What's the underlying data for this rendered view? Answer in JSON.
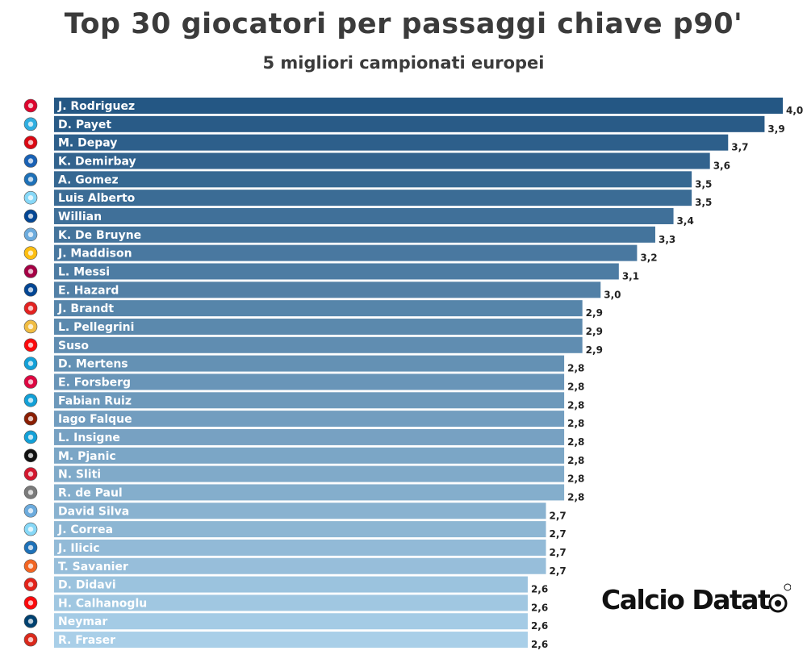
{
  "header": {
    "title": "Top 30 giocatori per passaggi chiave p90'",
    "subtitle": "5 migliori campionati europei"
  },
  "brand": {
    "text": "Calcio Datat"
  },
  "chart_data": {
    "type": "bar",
    "orientation": "horizontal",
    "title": "Top 30 giocatori per passaggi chiave p90'",
    "subtitle": "5 migliori campionati europei",
    "xlim": [
      0,
      4.0
    ],
    "grid": false,
    "categories": [
      "J. Rodriguez",
      "D. Payet",
      "M. Depay",
      "K. Demirbay",
      "A. Gomez",
      "Luis Alberto",
      "Willian",
      "K. De Bruyne",
      "J. Maddison",
      "L. Messi",
      "E. Hazard",
      "J. Brandt",
      "L. Pellegrini",
      "Suso",
      "D. Mertens",
      "E. Forsberg",
      "Fabian Ruiz",
      "Iago Falque",
      "L. Insigne",
      "M. Pjanic",
      "N. Sliti",
      "R. de Paul",
      "David Silva",
      "J. Correa",
      "J. Ilicic",
      "T. Savanier",
      "D. Didavi",
      "H. Calhanoglu",
      "Neymar",
      "R. Fraser"
    ],
    "values": [
      4.0,
      3.9,
      3.7,
      3.6,
      3.5,
      3.5,
      3.4,
      3.3,
      3.2,
      3.1,
      3.0,
      2.9,
      2.9,
      2.9,
      2.8,
      2.8,
      2.8,
      2.8,
      2.8,
      2.8,
      2.8,
      2.8,
      2.7,
      2.7,
      2.7,
      2.7,
      2.6,
      2.6,
      2.6,
      2.6
    ],
    "value_labels": [
      "4,0",
      "3,9",
      "3,7",
      "3,6",
      "3,5",
      "3,5",
      "3,4",
      "3,3",
      "3,2",
      "3,1",
      "3,0",
      "2,9",
      "2,9",
      "2,9",
      "2,8",
      "2,8",
      "2,8",
      "2,8",
      "2,8",
      "2,8",
      "2,8",
      "2,8",
      "2,7",
      "2,7",
      "2,7",
      "2,7",
      "2,6",
      "2,6",
      "2,6",
      "2,6"
    ],
    "colors": {
      "dark": "#245784",
      "light": "#a9cfe8"
    },
    "team_badges": [
      {
        "name": "bayern-badge-icon",
        "color": "#dc052d"
      },
      {
        "name": "marseille-badge-icon",
        "color": "#2faee0"
      },
      {
        "name": "lyon-badge-icon",
        "color": "#da0812"
      },
      {
        "name": "hoffenheim-badge-icon",
        "color": "#1961b5"
      },
      {
        "name": "atalanta-badge-icon",
        "color": "#1e71b8"
      },
      {
        "name": "lazio-badge-icon",
        "color": "#87d8f7"
      },
      {
        "name": "chelsea-badge-icon",
        "color": "#034694"
      },
      {
        "name": "man-city-badge-icon",
        "color": "#6cabdd"
      },
      {
        "name": "leicester-badge-icon",
        "color": "#fdbe11"
      },
      {
        "name": "barcelona-badge-icon",
        "color": "#a50044"
      },
      {
        "name": "chelsea-badge-icon",
        "color": "#034694"
      },
      {
        "name": "leverkusen-badge-icon",
        "color": "#e32221"
      },
      {
        "name": "roma-badge-icon",
        "color": "#f0bc42"
      },
      {
        "name": "milan-badge-icon",
        "color": "#fb090b"
      },
      {
        "name": "napoli-badge-icon",
        "color": "#12a0d7"
      },
      {
        "name": "leipzig-badge-icon",
        "color": "#dd0741"
      },
      {
        "name": "napoli-badge-icon",
        "color": "#12a0d7"
      },
      {
        "name": "torino-badge-icon",
        "color": "#8a1e03"
      },
      {
        "name": "napoli-badge-icon",
        "color": "#12a0d7"
      },
      {
        "name": "juventus-badge-icon",
        "color": "#111111"
      },
      {
        "name": "dijon-badge-icon",
        "color": "#d3172e"
      },
      {
        "name": "udinese-badge-icon",
        "color": "#7a7a7a"
      },
      {
        "name": "man-city-badge-icon",
        "color": "#6cabdd"
      },
      {
        "name": "lazio-badge-icon",
        "color": "#87d8f7"
      },
      {
        "name": "atalanta-badge-icon",
        "color": "#1e71b8"
      },
      {
        "name": "montpellier-badge-icon",
        "color": "#f26522"
      },
      {
        "name": "stuttgart-badge-icon",
        "color": "#e32219"
      },
      {
        "name": "milan-badge-icon",
        "color": "#fb090b"
      },
      {
        "name": "psg-badge-icon",
        "color": "#004170"
      },
      {
        "name": "bournemouth-badge-icon",
        "color": "#da291c"
      }
    ]
  }
}
